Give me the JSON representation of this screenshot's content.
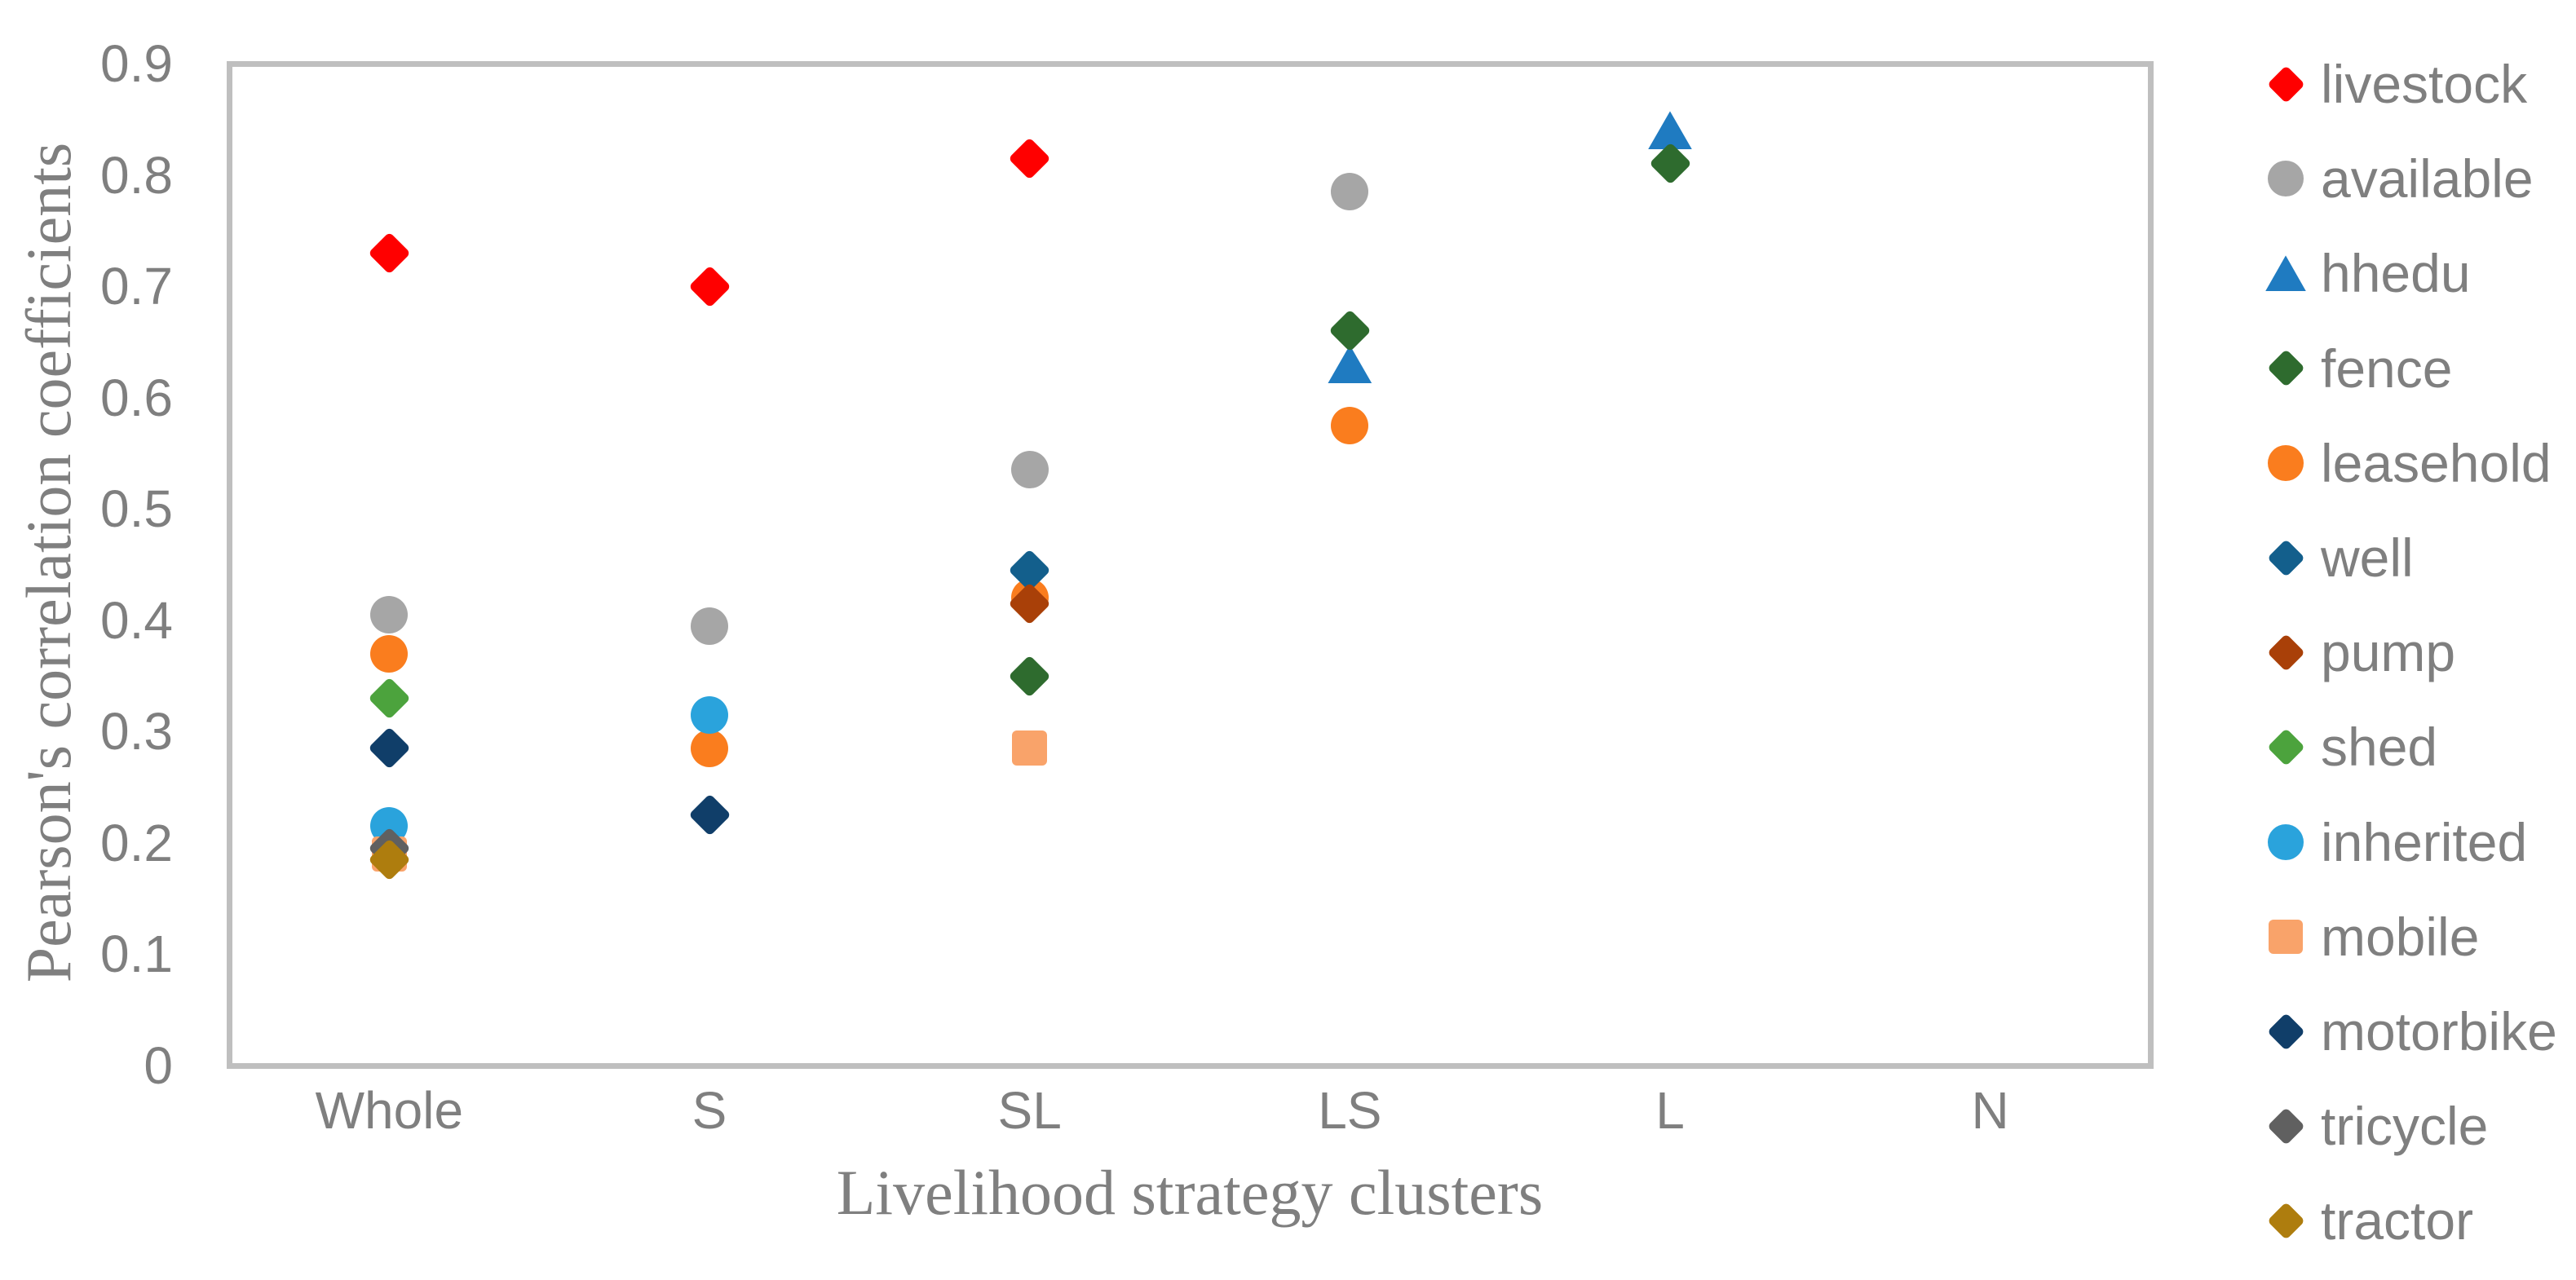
{
  "chart_data": {
    "type": "scatter",
    "title": "",
    "xlabel": "Livelihood strategy clusters",
    "ylabel": "Pearson's correlation coefficients",
    "categories": [
      "Whole",
      "S",
      "SL",
      "LS",
      "L",
      "N"
    ],
    "y_tick_labels": [
      "0.9",
      "0.8",
      "0.7",
      "0.6",
      "0.5",
      "0.4",
      "0.3",
      "0.2",
      "0.1",
      "0"
    ],
    "y_tick_values": [
      0.9,
      0.8,
      0.7,
      0.6,
      0.5,
      0.4,
      0.3,
      0.2,
      0.1,
      0
    ],
    "ylim": [
      0,
      0.9
    ],
    "grid": false,
    "legend_position": "right",
    "series": [
      {
        "name": "livestock",
        "marker": "diamond",
        "color": "#FF0000",
        "points": [
          [
            "Whole",
            0.73
          ],
          [
            "S",
            0.7
          ],
          [
            "SL",
            0.815
          ]
        ]
      },
      {
        "name": "available",
        "marker": "circle",
        "color": "#A6A6A6",
        "points": [
          [
            "Whole",
            0.405
          ],
          [
            "S",
            0.395
          ],
          [
            "SL",
            0.535
          ],
          [
            "LS",
            0.785
          ]
        ]
      },
      {
        "name": "hhedu",
        "marker": "triangle",
        "color": "#1F7BC1",
        "points": [
          [
            "LS",
            0.63
          ],
          [
            "L",
            0.84
          ]
        ]
      },
      {
        "name": "fence",
        "marker": "diamond",
        "color": "#2E6B2E",
        "points": [
          [
            "SL",
            0.35
          ],
          [
            "LS",
            0.66
          ],
          [
            "L",
            0.81
          ]
        ]
      },
      {
        "name": "leasehold",
        "marker": "circle",
        "color": "#FA7D1E",
        "points": [
          [
            "Whole",
            0.37
          ],
          [
            "S",
            0.285
          ],
          [
            "SL",
            0.42
          ],
          [
            "LS",
            0.575
          ]
        ]
      },
      {
        "name": "well",
        "marker": "diamond",
        "color": "#135F8C",
        "points": [
          [
            "SL",
            0.445
          ]
        ]
      },
      {
        "name": "pump",
        "marker": "diamond",
        "color": "#A94008",
        "points": [
          [
            "SL",
            0.415
          ]
        ]
      },
      {
        "name": "shed",
        "marker": "diamond",
        "color": "#4CA33D",
        "points": [
          [
            "Whole",
            0.33
          ]
        ]
      },
      {
        "name": "inherited",
        "marker": "circle",
        "color": "#2AA3DC",
        "points": [
          [
            "Whole",
            0.215
          ],
          [
            "S",
            0.315
          ]
        ]
      },
      {
        "name": "mobile",
        "marker": "square",
        "color": "#F9A36A",
        "points": [
          [
            "Whole",
            0.19
          ],
          [
            "SL",
            0.285
          ]
        ]
      },
      {
        "name": "motorbike",
        "marker": "diamond",
        "color": "#103E69",
        "points": [
          [
            "Whole",
            0.285
          ],
          [
            "S",
            0.225
          ]
        ]
      },
      {
        "name": "tricycle",
        "marker": "diamond",
        "color": "#606060",
        "points": [
          [
            "Whole",
            0.195
          ]
        ]
      },
      {
        "name": "tractor",
        "marker": "diamond",
        "color": "#AE7D0E",
        "points": [
          [
            "Whole",
            0.185
          ]
        ]
      }
    ]
  },
  "colors": {
    "axis_text": "#7F7F7F",
    "frame": "#BFBFBF",
    "background": "#FFFFFF"
  }
}
